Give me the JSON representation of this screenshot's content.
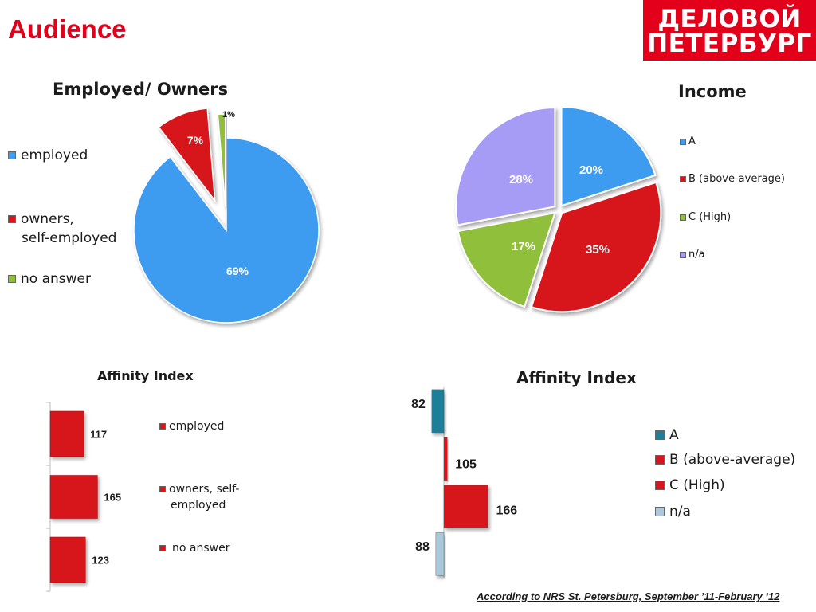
{
  "page": {
    "title": "Audience",
    "logo_line1": "ДЕЛОВОЙ",
    "logo_line2": "ПЕТЕРБУРГ",
    "footnote": "According to NRS St. Petersburg, September ’11-February ‘12"
  },
  "colors": {
    "accent_red": "#e3001b",
    "blue": "#3d9bf0",
    "red": "#d7151c",
    "green": "#8fbf3a",
    "lavender": "#a69bf5",
    "teal": "#1f7f99",
    "light_blue": "#a9c8dc"
  },
  "chart_data": [
    {
      "id": "employed_pie",
      "type": "pie",
      "title": "Employed/ Owners",
      "legend": [
        "employed",
        "owners, self-employed",
        "no answer"
      ],
      "legend_lines": [
        [
          "employed"
        ],
        [
          "owners,",
          "self-employed"
        ],
        [
          "no answer"
        ]
      ],
      "slices": [
        {
          "name": "employed",
          "value": 69,
          "label": "69%",
          "color": "#3d9bf0",
          "exploded": false
        },
        {
          "name": "owners, self-employed",
          "value": 7,
          "label": "7%",
          "color": "#d7151c",
          "exploded": true
        },
        {
          "name": "no answer",
          "value": 1,
          "label": "1%",
          "color": "#8fbf3a",
          "exploded": true
        }
      ]
    },
    {
      "id": "income_pie",
      "type": "pie",
      "title": "Income",
      "legend": [
        "A",
        "B (above-average)",
        "C (High)",
        "n/a"
      ],
      "slices": [
        {
          "name": "A",
          "value": 20,
          "label": "20%",
          "color": "#3d9bf0"
        },
        {
          "name": "B (above-average)",
          "value": 35,
          "label": "35%",
          "color": "#d7151c"
        },
        {
          "name": "C (High)",
          "value": 17,
          "label": "17%",
          "color": "#8fbf3a"
        },
        {
          "name": "n/a",
          "value": 28,
          "label": "28%",
          "color": "#a69bf5"
        }
      ]
    },
    {
      "id": "affinity_employment",
      "type": "bar",
      "orientation": "horizontal",
      "title": "Affinity Index",
      "legend": [
        "employed",
        "owners, self-employed",
        "no answer"
      ],
      "legend_lines": [
        [
          "employed"
        ],
        [
          "owners, self-",
          "employed"
        ],
        [
          "no answer"
        ]
      ],
      "categories": [
        "employed",
        "owners, self-employed",
        "no answer"
      ],
      "values": [
        117,
        165,
        123
      ],
      "colors": [
        "#d7151c",
        "#d7151c",
        "#d7151c"
      ]
    },
    {
      "id": "affinity_income",
      "type": "bar",
      "orientation": "horizontal",
      "title": "Affinity Index",
      "legend": [
        "A",
        "B (above-average)",
        "C (High)",
        "n/a"
      ],
      "categories": [
        "A",
        "B (above-average)",
        "C (High)",
        "n/a"
      ],
      "values": [
        82,
        105,
        166,
        88
      ],
      "baseline": 100,
      "colors": [
        "#1f7f99",
        "#d7151c",
        "#d7151c",
        "#a9c8dc"
      ]
    }
  ]
}
